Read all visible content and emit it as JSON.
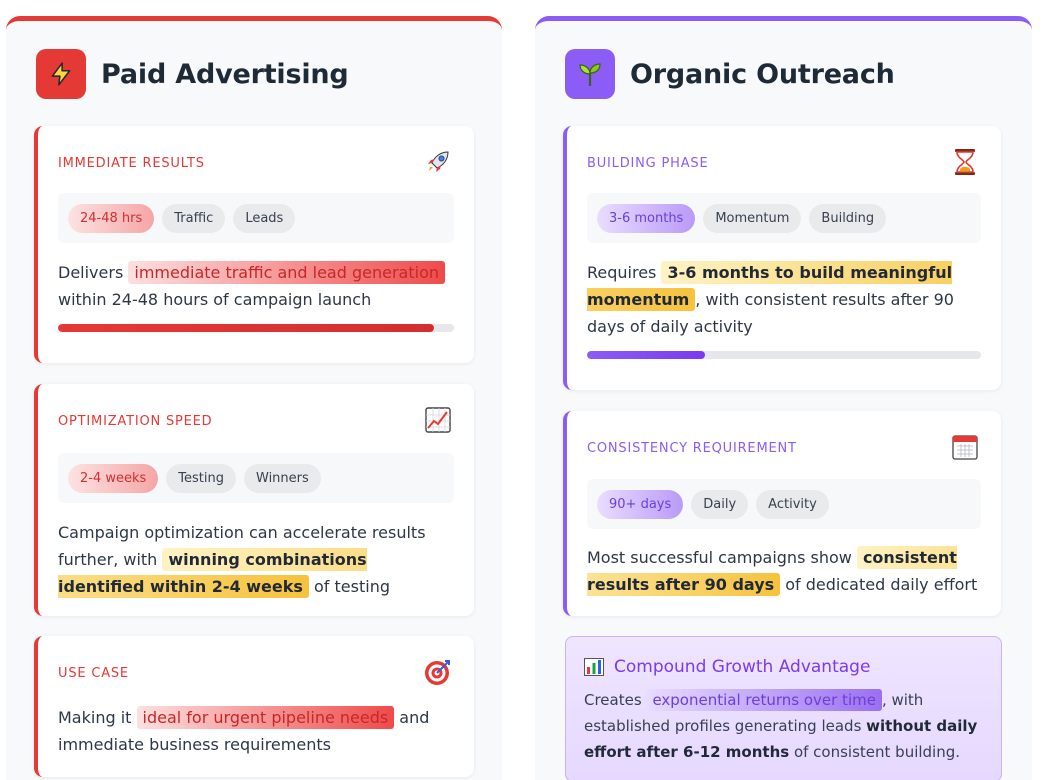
{
  "left": {
    "title": "Paid Advertising",
    "accent": "#e53935",
    "icon": "lightning-icon",
    "cards": [
      {
        "label": "IMMEDIATE RESULTS",
        "icon": "rocket-icon",
        "tags": [
          "24-48 hrs",
          "Traffic",
          "Leads"
        ],
        "text_before": "Delivers ",
        "highlight": "immediate traffic and lead generation",
        "text_after": " within 24-48 hours of campaign launch",
        "progress": 0.95
      },
      {
        "label": "OPTIMIZATION SPEED",
        "icon": "chart-increasing-icon",
        "tags": [
          "2-4 weeks",
          "Testing",
          "Winners"
        ],
        "text_before": "Campaign optimization can accelerate results further, with ",
        "highlight": "winning combinations identified within 2-4 weeks",
        "text_after": " of testing"
      },
      {
        "label": "USE CASE",
        "icon": "target-icon",
        "text_before": "Making it ",
        "highlight": "ideal for urgent pipeline needs",
        "text_after": " and immediate business requirements"
      }
    ]
  },
  "right": {
    "title": "Organic Outreach",
    "accent": "#8b5cf6",
    "icon": "seedling-icon",
    "cards": [
      {
        "label": "BUILDING PHASE",
        "icon": "hourglass-icon",
        "tags": [
          "3-6 months",
          "Momentum",
          "Building"
        ],
        "text_before": "Requires ",
        "highlight": "3-6 months to build meaningful momentum",
        "text_after": ", with consistent results after 90 days of daily activity",
        "progress": 0.3
      },
      {
        "label": "CONSISTENCY REQUIREMENT",
        "icon": "calendar-icon",
        "tags": [
          "90+ days",
          "Daily",
          "Activity"
        ],
        "text_before": "Most successful campaigns show ",
        "highlight": "consistent results after 90 days",
        "text_after": " of dedicated daily effort"
      }
    ],
    "compound": {
      "icon": "bar-chart-icon",
      "title": "Compound Growth Advantage",
      "text_before": "Creates ",
      "highlight": "exponential returns over time",
      "text_mid": ", with established profiles generating leads ",
      "bold": "without daily effort after 6-12 months",
      "text_after": " of consistent building."
    }
  }
}
